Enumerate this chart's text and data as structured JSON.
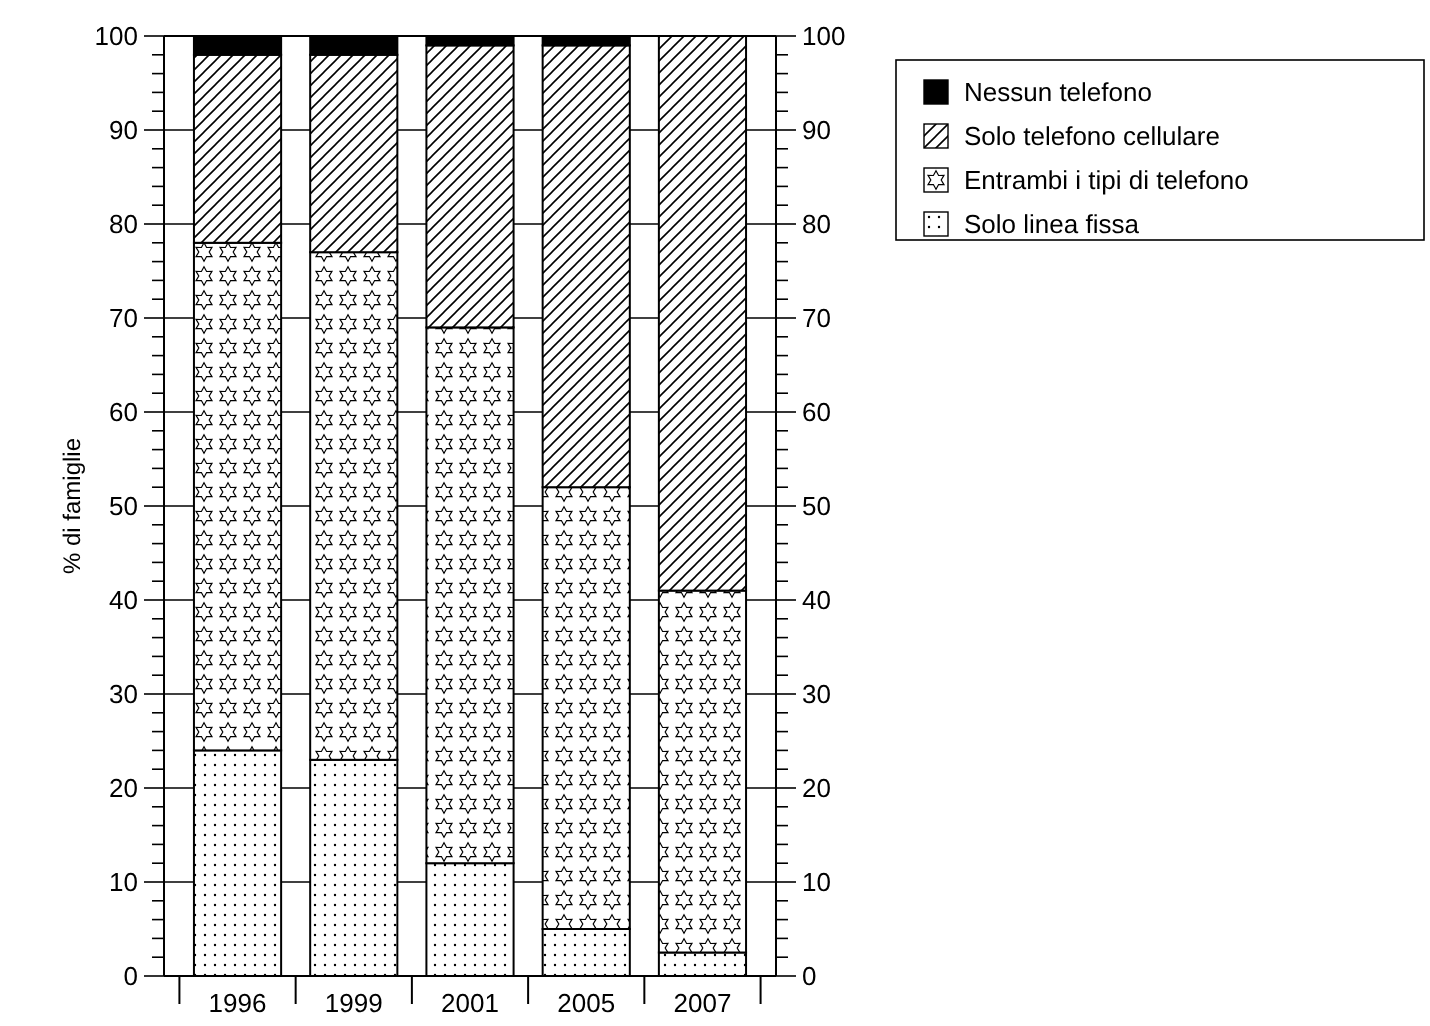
{
  "chart_data": {
    "type": "bar",
    "stacked": true,
    "ylabel": "% di famiglie",
    "categories": [
      "1996",
      "1999",
      "2001",
      "2005",
      "2007"
    ],
    "series": [
      {
        "name": "Solo linea fissa",
        "color": "#000000",
        "values": [
          24,
          23,
          12,
          5,
          2.5
        ]
      },
      {
        "name": "Entrambi i tipi di telefono",
        "color": "#000000",
        "values": [
          54,
          54,
          57,
          47,
          38.5
        ]
      },
      {
        "name": "Solo telefono cellulare",
        "color": "#000000",
        "values": [
          20,
          21,
          30,
          47,
          59
        ]
      },
      {
        "name": "Nessun telefono",
        "color": "#000000",
        "values": [
          2,
          2,
          1,
          1,
          0
        ]
      }
    ],
    "ylim": [
      0,
      100
    ],
    "yticks": [
      0,
      {
        "value": 2,
        "label": null
      },
      {
        "value": 4,
        "label": null
      },
      {
        "value": 6,
        "label": null
      },
      {
        "value": 8,
        "label": null
      },
      10,
      {
        "value": 12,
        "label": null
      },
      {
        "value": 14,
        "label": null
      },
      {
        "value": 16,
        "label": null
      },
      {
        "value": 18,
        "label": null
      },
      20,
      {
        "value": 22,
        "label": null
      },
      {
        "value": 24,
        "label": null
      },
      {
        "value": 26,
        "label": null
      },
      {
        "value": 28,
        "label": null
      },
      30,
      {
        "value": 32,
        "label": null
      },
      {
        "value": 34,
        "label": null
      },
      {
        "value": 36,
        "label": null
      },
      {
        "value": 38,
        "label": null
      },
      40,
      {
        "value": 42,
        "label": null
      },
      {
        "value": 44,
        "label": null
      },
      {
        "value": 46,
        "label": null
      },
      {
        "value": 48,
        "label": null
      },
      50,
      {
        "value": 52,
        "label": null
      },
      {
        "value": 54,
        "label": null
      },
      {
        "value": 56,
        "label": null
      },
      {
        "value": 58,
        "label": null
      },
      60,
      {
        "value": 62,
        "label": null
      },
      {
        "value": 64,
        "label": null
      },
      {
        "value": 66,
        "label": null
      },
      {
        "value": 68,
        "label": null
      },
      70,
      {
        "value": 72,
        "label": null
      },
      {
        "value": 74,
        "label": null
      },
      {
        "value": 76,
        "label": null
      },
      {
        "value": 78,
        "label": null
      },
      80,
      {
        "value": 82,
        "label": null
      },
      {
        "value": 84,
        "label": null
      },
      {
        "value": 86,
        "label": null
      },
      {
        "value": 88,
        "label": null
      },
      90,
      {
        "value": 92,
        "label": null
      },
      {
        "value": 94,
        "label": null
      },
      {
        "value": 96,
        "label": null
      },
      {
        "value": 98,
        "label": null
      },
      100
    ],
    "y2lim": [
      0,
      100
    ],
    "y2ticks": [
      0,
      10,
      20,
      30,
      40,
      50,
      60,
      70,
      80,
      90,
      100
    ],
    "grid": "y",
    "legend": "right"
  }
}
